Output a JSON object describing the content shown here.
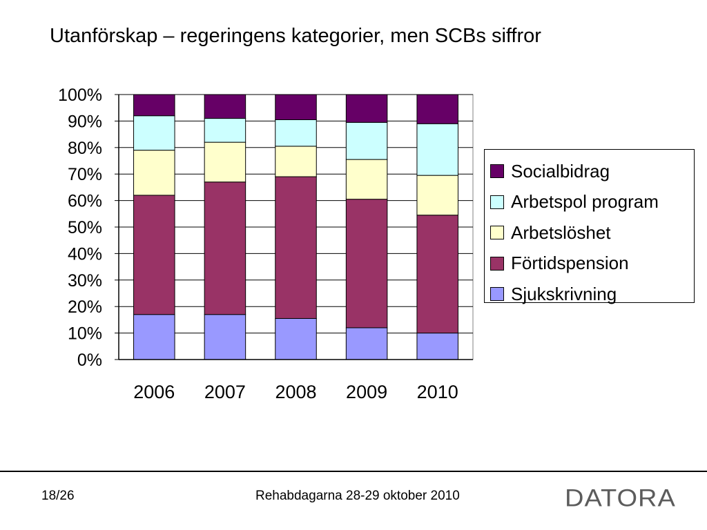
{
  "slide": {
    "title": "Utanförskap – regeringens kategorier, men SCBs siffror"
  },
  "footer": {
    "page_number": "18/26",
    "event": "Rehabdagarna 28-29 oktober 2010",
    "logo_text": "DATORA"
  },
  "chart_data": {
    "type": "bar",
    "stacked": "percent",
    "categories": [
      "2006",
      "2007",
      "2008",
      "2009",
      "2010"
    ],
    "series": [
      {
        "name": "Sjukskrivning",
        "color": "#9999ff",
        "values": [
          17,
          17,
          15.5,
          12,
          10
        ]
      },
      {
        "name": "Förtidspension",
        "color": "#993366",
        "values": [
          45,
          50,
          53.5,
          48.5,
          44.5
        ]
      },
      {
        "name": "Arbetslöshet",
        "color": "#ffffcc",
        "values": [
          17,
          15,
          11.5,
          15,
          15
        ]
      },
      {
        "name": "Arbetspol program",
        "color": "#ccffff",
        "values": [
          13,
          9,
          10,
          14,
          19.5
        ]
      },
      {
        "name": "Socialbidrag",
        "color": "#660066",
        "values": [
          8,
          9,
          9.5,
          10.5,
          11
        ]
      }
    ],
    "ylim": [
      0,
      100
    ],
    "yticks": [
      "0%",
      "10%",
      "20%",
      "30%",
      "40%",
      "50%",
      "60%",
      "70%",
      "80%",
      "90%",
      "100%"
    ],
    "grid": true,
    "legend_position": "right",
    "legend_order": [
      "Socialbidrag",
      "Arbetspol program",
      "Arbetslöshet",
      "Förtidspension",
      "Sjukskrivning"
    ]
  }
}
